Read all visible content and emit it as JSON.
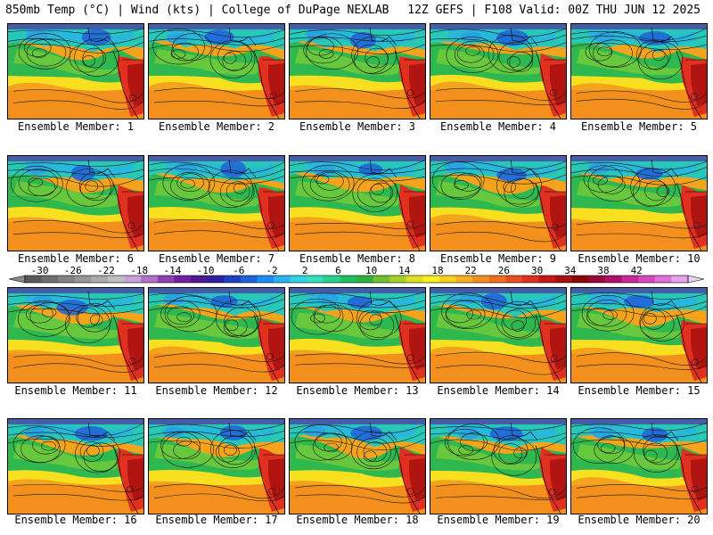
{
  "header": {
    "left_title": "850mb Temp (°C) | Wind (kts) | College of DuPage NEXLAB",
    "right_title": "12Z GEFS | F108 Valid: 00Z THU JUN 12 2025"
  },
  "panel_label_prefix": "Ensemble Member: ",
  "members": [
    {
      "number": 1,
      "label": "Ensemble Member: 1"
    },
    {
      "number": 2,
      "label": "Ensemble Member: 2"
    },
    {
      "number": 3,
      "label": "Ensemble Member: 3"
    },
    {
      "number": 4,
      "label": "Ensemble Member: 4"
    },
    {
      "number": 5,
      "label": "Ensemble Member: 5"
    },
    {
      "number": 6,
      "label": "Ensemble Member: 6"
    },
    {
      "number": 7,
      "label": "Ensemble Member: 7"
    },
    {
      "number": 8,
      "label": "Ensemble Member: 8"
    },
    {
      "number": 9,
      "label": "Ensemble Member: 9"
    },
    {
      "number": 10,
      "label": "Ensemble Member: 10"
    },
    {
      "number": 11,
      "label": "Ensemble Member: 11"
    },
    {
      "number": 12,
      "label": "Ensemble Member: 12"
    },
    {
      "number": 13,
      "label": "Ensemble Member: 13"
    },
    {
      "number": 14,
      "label": "Ensemble Member: 14"
    },
    {
      "number": 15,
      "label": "Ensemble Member: 15"
    },
    {
      "number": 16,
      "label": "Ensemble Member: 16"
    },
    {
      "number": 17,
      "label": "Ensemble Member: 17"
    },
    {
      "number": 18,
      "label": "Ensemble Member: 18"
    },
    {
      "number": 19,
      "label": "Ensemble Member: 19"
    },
    {
      "number": 20,
      "label": "Ensemble Member: 20"
    }
  ],
  "colorbar": {
    "tick_labels": [
      "-30",
      "-26",
      "-22",
      "-18",
      "-14",
      "-10",
      "-6",
      "-2",
      "2",
      "6",
      "10",
      "14",
      "18",
      "22",
      "26",
      "30",
      "34",
      "38",
      "42"
    ],
    "colors": [
      "#5a5a5a",
      "#6e6e6e",
      "#828282",
      "#969696",
      "#aaaaaa",
      "#bebebe",
      "#c8a0d8",
      "#b070c8",
      "#9040b0",
      "#7020a0",
      "#501890",
      "#3020a0",
      "#2040c0",
      "#1e64dc",
      "#1e8cf0",
      "#28b4f0",
      "#30d2e6",
      "#30e0c0",
      "#28d28c",
      "#20c060",
      "#30b040",
      "#70c030",
      "#a8d028",
      "#e0e020",
      "#f8f020",
      "#f8d020",
      "#f8b020",
      "#f09020",
      "#f07020",
      "#e85020",
      "#e03020",
      "#c81818",
      "#a81010",
      "#880808",
      "#980838",
      "#b01068",
      "#c82898",
      "#d848c0",
      "#e070d8",
      "#e8a0e8"
    ]
  }
}
